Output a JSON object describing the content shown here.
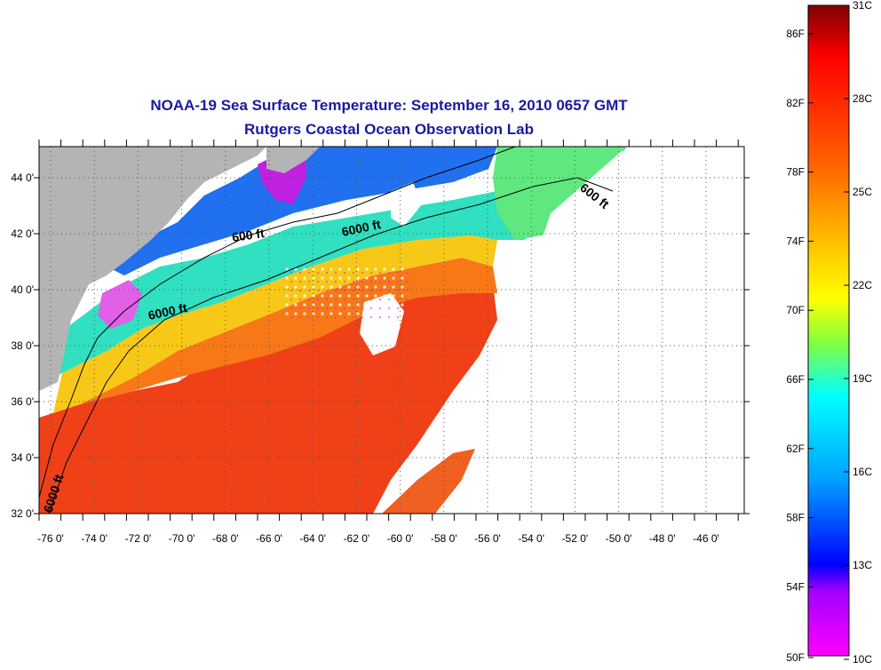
{
  "title": {
    "line1": "NOAA-19 Sea Surface Temperature:  September 16, 2010 0657 GMT",
    "line2": "Rutgers Coastal Ocean Observation Lab"
  },
  "map": {
    "longitude_ticks": [
      "-76 0'",
      "-74 0'",
      "-72 0'",
      "-70 0'",
      "-68 0'",
      "-66 0'",
      "-64 0'",
      "-62 0'",
      "-60 0'",
      "-58 0'",
      "-56 0'",
      "-54 0'",
      "-52 0'",
      "-50 0'",
      "-48 0'",
      "-46 0'"
    ],
    "latitude_ticks": [
      "44 0'",
      "42 0'",
      "40 0'",
      "38 0'",
      "36 0'",
      "34 0'",
      "32 0'"
    ],
    "contour_labels": [
      "600 ft",
      "6000 ft",
      "6000 ft",
      "600 ft",
      "6000 ft"
    ],
    "colors": {
      "land": "#b4b4b4",
      "cloud": "#ffffff",
      "gulf_stream": "#f04018",
      "slope_water": "#f8a818",
      "shelf": "#2070f0",
      "cold_shelf": "#e020d0"
    }
  },
  "colorbar": {
    "fahrenheit_labels": [
      "86F",
      "82F",
      "78F",
      "74F",
      "70F",
      "66F",
      "62F",
      "58F",
      "54F",
      "50F"
    ],
    "celsius_labels": [
      "31C",
      "28C",
      "25C",
      "22C",
      "19C",
      "16C",
      "13C",
      "10C"
    ],
    "gradient_stops": [
      "#800000",
      "#ff0000",
      "#ff6600",
      "#ffcc00",
      "#ffff00",
      "#80ff40",
      "#00ffff",
      "#00a0ff",
      "#0000ff",
      "#a000ff",
      "#ff00ff"
    ]
  }
}
